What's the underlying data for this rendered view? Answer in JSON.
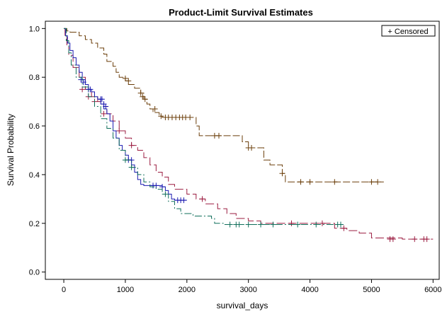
{
  "chart_data": {
    "type": "line",
    "step": true,
    "title": "Product-Limit Survival Estimates",
    "xlabel": "survival_days",
    "ylabel": "Survival Probability",
    "xlim": [
      -300,
      6100
    ],
    "ylim": [
      -0.03,
      1.03
    ],
    "xticks": [
      0,
      1000,
      2000,
      3000,
      4000,
      5000,
      6000
    ],
    "yticks": [
      0.0,
      0.2,
      0.4,
      0.6,
      0.8,
      1.0
    ],
    "ytick_labels": [
      "0.0",
      "0.2",
      "0.4",
      "0.6",
      "0.8",
      "1.0"
    ],
    "legend": {
      "label": "+ Censored",
      "position": "top-right"
    },
    "series": [
      {
        "color": "#6b3e0a",
        "dash": "10,3",
        "x": [
          0,
          50,
          100,
          250,
          350,
          450,
          550,
          650,
          700,
          800,
          850,
          900,
          1000,
          1050,
          1150,
          1250,
          1300,
          1350,
          1400,
          1450,
          1550,
          1600,
          2150,
          2200,
          2900,
          3000,
          3250,
          3350,
          3550,
          3600,
          5200
        ],
        "y": [
          1.0,
          0.99,
          0.985,
          0.97,
          0.955,
          0.94,
          0.92,
          0.895,
          0.865,
          0.845,
          0.82,
          0.8,
          0.785,
          0.77,
          0.755,
          0.735,
          0.71,
          0.69,
          0.67,
          0.655,
          0.64,
          0.635,
          0.6,
          0.56,
          0.535,
          0.51,
          0.46,
          0.44,
          0.405,
          0.37,
          0.37
        ],
        "censored_x": [
          1000,
          1050,
          1250,
          1280,
          1320,
          1480,
          1580,
          1650,
          1700,
          1760,
          1820,
          1880,
          1930,
          1980,
          2050,
          2450,
          2520,
          3000,
          3050,
          3550,
          3850,
          4000,
          4400,
          5000,
          5100
        ],
        "censored_y": [
          0.795,
          0.785,
          0.735,
          0.72,
          0.71,
          0.67,
          0.64,
          0.635,
          0.635,
          0.635,
          0.635,
          0.635,
          0.635,
          0.635,
          0.635,
          0.56,
          0.56,
          0.51,
          0.51,
          0.405,
          0.37,
          0.37,
          0.37,
          0.37,
          0.37
        ]
      },
      {
        "color": "#9b1c40",
        "dash": "12,4",
        "x": [
          0,
          20,
          50,
          80,
          150,
          250,
          350,
          450,
          550,
          650,
          700,
          800,
          900,
          1000,
          1100,
          1200,
          1300,
          1400,
          1500,
          1600,
          1700,
          1800,
          2000,
          2150,
          2300,
          2500,
          2650,
          2800,
          3000,
          3200,
          3500,
          3700,
          4100,
          4400,
          4600,
          4800,
          5000,
          5500,
          6000
        ],
        "y": [
          1.0,
          0.97,
          0.93,
          0.89,
          0.84,
          0.8,
          0.75,
          0.72,
          0.7,
          0.68,
          0.65,
          0.62,
          0.58,
          0.55,
          0.52,
          0.5,
          0.47,
          0.44,
          0.41,
          0.39,
          0.36,
          0.34,
          0.32,
          0.3,
          0.28,
          0.26,
          0.24,
          0.22,
          0.21,
          0.2,
          0.2,
          0.2,
          0.2,
          0.18,
          0.17,
          0.16,
          0.14,
          0.135,
          0.135
        ],
        "censored_x": [
          300,
          400,
          500,
          650,
          900,
          1100,
          2250,
          3700,
          4200,
          4550,
          5300,
          5350,
          5700,
          5850,
          5900
        ],
        "censored_y": [
          0.75,
          0.72,
          0.7,
          0.65,
          0.58,
          0.52,
          0.3,
          0.2,
          0.2,
          0.18,
          0.135,
          0.135,
          0.135,
          0.135,
          0.135
        ]
      },
      {
        "color": "#1a1ab0",
        "dash": "",
        "x": [
          0,
          30,
          60,
          100,
          150,
          200,
          250,
          300,
          350,
          400,
          450,
          500,
          550,
          600,
          650,
          700,
          750,
          800,
          850,
          900,
          950,
          1000,
          1050,
          1100,
          1150,
          1200,
          1250,
          1300,
          1350,
          1600,
          1650,
          1700,
          1750,
          1800,
          2000
        ],
        "y": [
          1.0,
          0.97,
          0.94,
          0.91,
          0.88,
          0.85,
          0.82,
          0.79,
          0.77,
          0.75,
          0.74,
          0.72,
          0.71,
          0.69,
          0.67,
          0.65,
          0.62,
          0.58,
          0.55,
          0.52,
          0.5,
          0.48,
          0.46,
          0.44,
          0.41,
          0.38,
          0.36,
          0.355,
          0.355,
          0.35,
          0.335,
          0.32,
          0.3,
          0.295,
          0.295
        ],
        "censored_x": [
          280,
          320,
          400,
          430,
          600,
          620,
          650,
          680,
          1050,
          1100,
          1450,
          1500,
          1600,
          1850,
          1900,
          1950
        ],
        "censored_y": [
          0.79,
          0.78,
          0.75,
          0.75,
          0.71,
          0.71,
          0.69,
          0.68,
          0.46,
          0.46,
          0.355,
          0.355,
          0.35,
          0.295,
          0.295,
          0.295
        ]
      },
      {
        "color": "#0f6e5a",
        "dash": "10,3,2,3",
        "x": [
          0,
          40,
          80,
          120,
          200,
          300,
          400,
          500,
          600,
          700,
          800,
          900,
          1000,
          1100,
          1200,
          1300,
          1400,
          1500,
          1600,
          1700,
          1800,
          1900,
          2100,
          2400,
          2450,
          2600,
          3000,
          4500
        ],
        "y": [
          1.0,
          0.95,
          0.9,
          0.85,
          0.8,
          0.76,
          0.72,
          0.68,
          0.63,
          0.59,
          0.55,
          0.5,
          0.46,
          0.43,
          0.4,
          0.37,
          0.35,
          0.34,
          0.32,
          0.29,
          0.26,
          0.24,
          0.23,
          0.22,
          0.2,
          0.195,
          0.195,
          0.195
        ],
        "censored_x": [
          1000,
          1100,
          1650,
          2700,
          2800,
          2850,
          3000,
          3200,
          3400,
          3800,
          4100,
          4450,
          4500
        ],
        "censored_y": [
          0.46,
          0.43,
          0.32,
          0.195,
          0.195,
          0.195,
          0.195,
          0.195,
          0.195,
          0.195,
          0.195,
          0.195,
          0.195
        ]
      }
    ]
  }
}
